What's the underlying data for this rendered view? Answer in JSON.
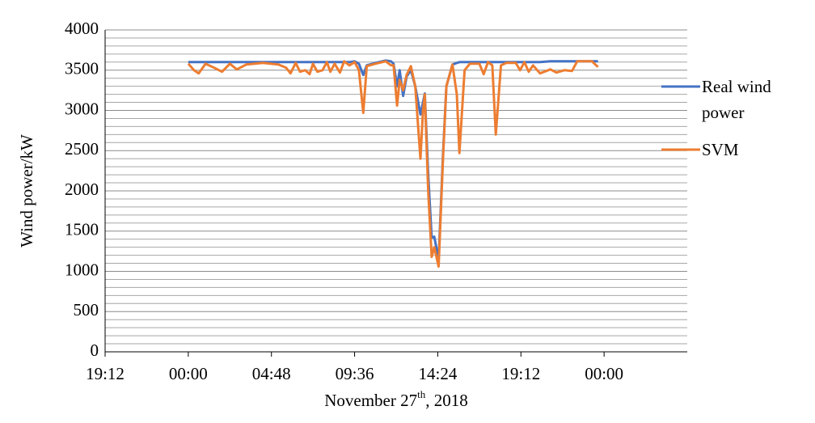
{
  "chart_data": {
    "type": "line",
    "xlabel": {
      "text": "November 27",
      "superscript": "th",
      "suffix": ", 2018"
    },
    "ylabel": "Wind power/kW",
    "x": [
      0,
      0.33,
      0.6,
      1.0,
      1.5,
      1.95,
      2.4,
      2.8,
      3.35,
      4.3,
      5.2,
      5.65,
      5.9,
      6.2,
      6.45,
      6.75,
      7.0,
      7.2,
      7.45,
      7.75,
      8.0,
      8.2,
      8.45,
      8.75,
      9.0,
      9.3,
      9.6,
      9.85,
      10.1,
      10.3,
      10.8,
      11.4,
      11.7,
      11.85,
      12.05,
      12.2,
      12.4,
      12.6,
      12.85,
      13.1,
      13.4,
      13.55,
      13.65,
      13.85,
      14.05,
      14.2,
      14.45,
      14.7,
      14.9,
      15.25,
      15.5,
      15.65,
      15.95,
      16.25,
      16.8,
      17.05,
      17.3,
      17.55,
      17.75,
      18.05,
      18.35,
      18.9,
      19.15,
      19.4,
      19.65,
      19.9,
      20.3,
      20.9,
      21.25,
      21.7,
      22.15,
      22.45,
      23.3,
      23.65
    ],
    "series": [
      {
        "name": "Real wind power",
        "color": "#4472c4",
        "values": [
          3600,
          3600,
          3600,
          3600,
          3600,
          3600,
          3600,
          3600,
          3600,
          3600,
          3600,
          3600,
          3600,
          3600,
          3600,
          3600,
          3600,
          3600,
          3600,
          3600,
          3600,
          3600,
          3600,
          3600,
          3600,
          3600,
          3610,
          3580,
          3440,
          3560,
          3590,
          3620,
          3610,
          3580,
          3300,
          3500,
          3180,
          3420,
          3500,
          3300,
          2950,
          3100,
          3210,
          2200,
          1420,
          1430,
          1150,
          2450,
          3300,
          3570,
          3590,
          3600,
          3600,
          3600,
          3600,
          3600,
          3600,
          3600,
          3600,
          3600,
          3600,
          3600,
          3600,
          3600,
          3600,
          3600,
          3600,
          3610,
          3610,
          3610,
          3610,
          3610,
          3610,
          3610
        ]
      },
      {
        "name": "SVM",
        "color": "#ed7d31",
        "values": [
          3580,
          3500,
          3460,
          3580,
          3530,
          3480,
          3580,
          3510,
          3570,
          3590,
          3570,
          3530,
          3460,
          3590,
          3480,
          3500,
          3450,
          3580,
          3480,
          3500,
          3600,
          3480,
          3580,
          3470,
          3610,
          3560,
          3600,
          3500,
          2970,
          3550,
          3580,
          3610,
          3560,
          3560,
          3060,
          3380,
          3250,
          3440,
          3550,
          3300,
          2400,
          3000,
          3200,
          2000,
          1180,
          1300,
          1060,
          2400,
          3300,
          3570,
          3200,
          2470,
          3500,
          3580,
          3580,
          3450,
          3600,
          3560,
          2700,
          3560,
          3590,
          3590,
          3500,
          3600,
          3480,
          3560,
          3460,
          3510,
          3470,
          3500,
          3490,
          3610,
          3610,
          3540
        ]
      }
    ],
    "xlim": [
      -4.8,
      28.8
    ],
    "xticks": [
      {
        "value": -4.8,
        "label": "19:12"
      },
      {
        "value": 0,
        "label": "00:00"
      },
      {
        "value": 4.8,
        "label": "04:48"
      },
      {
        "value": 9.6,
        "label": "09:36"
      },
      {
        "value": 14.4,
        "label": "14:24"
      },
      {
        "value": 19.2,
        "label": "19:12"
      },
      {
        "value": 24,
        "label": "00:00"
      }
    ],
    "ylim": [
      0,
      4000
    ],
    "yticks": [
      0,
      500,
      1000,
      1500,
      2000,
      2500,
      3000,
      3500,
      4000
    ],
    "minor_yticks": [
      100,
      200,
      300,
      400,
      600,
      700,
      800,
      900,
      1100,
      1200,
      1300,
      1400,
      1600,
      1700,
      1800,
      1900,
      2100,
      2200,
      2300,
      2400,
      2600,
      2700,
      2800,
      2900,
      3100,
      3200,
      3300,
      3400,
      3600,
      3700,
      3800,
      3900
    ],
    "grid": true,
    "legend": "right"
  }
}
